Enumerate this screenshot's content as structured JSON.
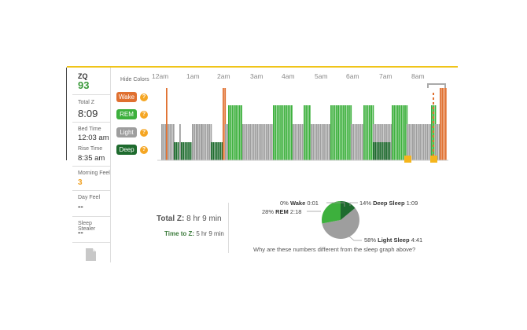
{
  "sidebar": {
    "zq_label": "ZQ",
    "zq_value": "93",
    "total_z_label": "Total Z",
    "total_z_value": "8:09",
    "bed_time_label": "Bed Time",
    "bed_time_value": "12:03 am",
    "rise_time_label": "Rise Time",
    "rise_time_value": "8:35 am",
    "morning_feel_label": "Morning Feel",
    "morning_feel_value": "3",
    "day_feel_label": "Day Feel",
    "day_feel_value": "--",
    "sleep_stealer_label": "Sleep Stealer",
    "sleep_stealer_value": "--"
  },
  "graph": {
    "hide_colors_label": "Hide Colors",
    "legend": [
      {
        "key": "wake",
        "label": "Wake",
        "color": "#e07030"
      },
      {
        "key": "rem",
        "label": "REM",
        "color": "#3db03d"
      },
      {
        "key": "light",
        "label": "Light",
        "color": "#9e9e9e"
      },
      {
        "key": "deep",
        "label": "Deep",
        "color": "#1e6b2e"
      }
    ],
    "help_glyph": "?",
    "hours": [
      "12am",
      "1am",
      "2am",
      "3am",
      "4am",
      "5am",
      "6am",
      "7am",
      "8am"
    ]
  },
  "summary": {
    "total_z_label": "Total Z:",
    "total_z_value": "8 hr 9 min",
    "time_to_z_label": "Time to Z:",
    "time_to_z_value": "5 hr 9 min"
  },
  "pie": {
    "wake": {
      "pct": "0%",
      "name": "Wake",
      "time": "0:01",
      "fraction": 0.0
    },
    "rem": {
      "pct": "28%",
      "name": "REM",
      "time": "2:18",
      "fraction": 0.28
    },
    "deep": {
      "pct": "14%",
      "name": "Deep Sleep",
      "time": "1:09",
      "fraction": 0.14
    },
    "light": {
      "pct": "58%",
      "name": "Light Sleep",
      "time": "4:41",
      "fraction": 0.58
    },
    "question": "Why are these numbers different from the sleep graph above?"
  }
}
